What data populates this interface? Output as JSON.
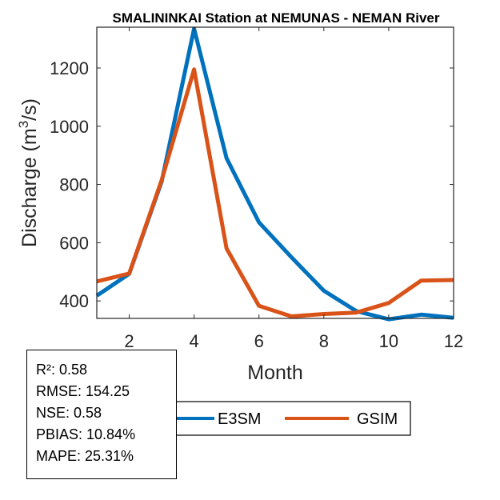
{
  "chart_data": {
    "type": "line",
    "title": "SMALININKAI  Station at  NEMUNAS - NEMAN  River",
    "xlabel": "Month",
    "ylabel": "Discharge (m",
    "ylabel_sup": "3",
    "ylabel_end": "/s)",
    "xlim": [
      1,
      12
    ],
    "ylim": [
      340,
      1340
    ],
    "xticks": [
      2,
      4,
      6,
      8,
      10,
      12
    ],
    "yticks": [
      400,
      600,
      800,
      1000,
      1200
    ],
    "x": [
      1,
      2,
      3,
      4,
      5,
      6,
      7,
      8,
      9,
      10,
      11,
      12
    ],
    "series": [
      {
        "name": "E3SM",
        "color": "#0072BD",
        "values": [
          418,
          493,
          810,
          1335,
          890,
          670,
          550,
          435,
          365,
          337,
          353,
          342
        ]
      },
      {
        "name": "GSIM",
        "color": "#D95319",
        "values": [
          467,
          494,
          815,
          1195,
          580,
          383,
          347,
          355,
          360,
          393,
          470,
          472
        ]
      }
    ],
    "grid": false,
    "legend_position": "bottom-right"
  },
  "stats": [
    "R²: 0.58",
    "RMSE: 154.25",
    "NSE: 0.58",
    "PBIAS: 10.84%",
    "MAPE: 25.31%"
  ]
}
